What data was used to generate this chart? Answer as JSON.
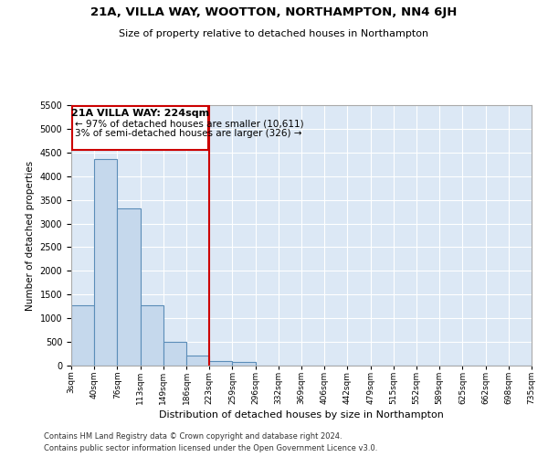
{
  "title1": "21A, VILLA WAY, WOOTTON, NORTHAMPTON, NN4 6JH",
  "title2": "Size of property relative to detached houses in Northampton",
  "xlabel": "Distribution of detached houses by size in Northampton",
  "ylabel": "Number of detached properties",
  "footer1": "Contains HM Land Registry data © Crown copyright and database right 2024.",
  "footer2": "Contains public sector information licensed under the Open Government Licence v3.0.",
  "annotation_title": "21A VILLA WAY: 224sqm",
  "annotation_line1": "← 97% of detached houses are smaller (10,611)",
  "annotation_line2": "3% of semi-detached houses are larger (326) →",
  "bar_values": [
    1270,
    4370,
    3320,
    1270,
    500,
    220,
    100,
    80,
    0,
    0,
    0,
    0,
    0,
    0,
    0,
    0,
    0,
    0,
    0,
    0
  ],
  "bin_labels": [
    "3sqm",
    "40sqm",
    "76sqm",
    "113sqm",
    "149sqm",
    "186sqm",
    "223sqm",
    "259sqm",
    "296sqm",
    "332sqm",
    "369sqm",
    "406sqm",
    "442sqm",
    "479sqm",
    "515sqm",
    "552sqm",
    "589sqm",
    "625sqm",
    "662sqm",
    "698sqm",
    "735sqm"
  ],
  "bar_color": "#c5d8ec",
  "bar_edge_color": "#5b8db8",
  "vline_color": "#cc0000",
  "box_edge_color": "#cc0000",
  "bg_color": "#dce8f5",
  "grid_color": "#ffffff",
  "ylim_max": 5500,
  "yticks": [
    0,
    500,
    1000,
    1500,
    2000,
    2500,
    3000,
    3500,
    4000,
    4500,
    5000,
    5500
  ],
  "vline_position": 6
}
